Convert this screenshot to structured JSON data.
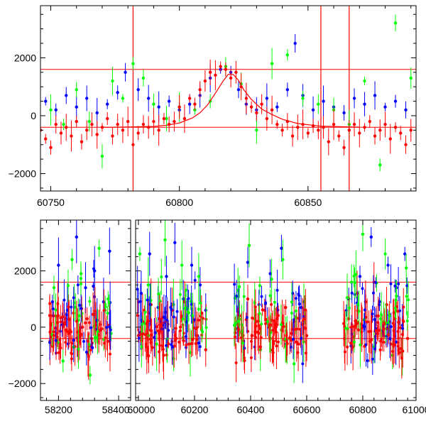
{
  "chart_data": [
    {
      "type": "scatter",
      "title": "",
      "xlabel": "",
      "ylabel": "",
      "xlim": [
        60746,
        60892
      ],
      "ylim": [
        -2600,
        3800
      ],
      "x_ticks": [
        60750,
        60800,
        60850
      ],
      "y_ticks": [
        -2000,
        0,
        2000
      ],
      "grid": false,
      "legend": "none",
      "hlines": [
        1600,
        -400
      ],
      "vlines": [
        60782,
        60855,
        60866
      ],
      "series": [
        {
          "color": "#0000ff",
          "x": [
            60748,
            60752,
            60756,
            60760,
            60764,
            60768,
            60772,
            60776,
            60779,
            60784,
            60788,
            60792,
            60796,
            60800,
            60804,
            60808,
            60812,
            60816,
            60820,
            60823,
            60826,
            60830,
            60834,
            60838,
            60842,
            60845,
            60848,
            60852,
            60856,
            60860,
            60864,
            60868,
            60872,
            60876,
            60880,
            60884,
            60888
          ],
          "y": [
            500,
            200,
            700,
            300,
            600,
            100,
            400,
            800,
            1500,
            900,
            600,
            300,
            500,
            200,
            400,
            700,
            1300,
            1600,
            1500,
            900,
            400,
            200,
            600,
            300,
            900,
            2500,
            700,
            200,
            500,
            300,
            100,
            600,
            400,
            700,
            300,
            500,
            200
          ]
        },
        {
          "color": "#00ff00",
          "x": [
            60750,
            60755,
            60760,
            60765,
            60770,
            60774,
            60778,
            60782,
            60786,
            60790,
            60795,
            60800,
            60806,
            60812,
            60818,
            60824,
            60830,
            60836,
            60842,
            60848,
            60854,
            60860,
            60866,
            60872,
            60878,
            60884,
            60890
          ],
          "y": [
            200,
            -300,
            900,
            -200,
            -1400,
            1200,
            600,
            1800,
            1300,
            400,
            -100,
            300,
            200,
            500,
            1700,
            1100,
            -500,
            1800,
            2100,
            600,
            400,
            200,
            -300,
            1200,
            -1700,
            3200,
            1300
          ]
        },
        {
          "color": "#ff0000",
          "x": [
            60746,
            60748,
            60750,
            60752,
            60754,
            60756,
            60758,
            60760,
            60762,
            60764,
            60766,
            60768,
            60770,
            60772,
            60774,
            60776,
            60778,
            60780,
            60782,
            60784,
            60786,
            60788,
            60790,
            60792,
            60794,
            60796,
            60798,
            60800,
            60802,
            60804,
            60806,
            60808,
            60810,
            60812,
            60814,
            60816,
            60818,
            60820,
            60822,
            60824,
            60826,
            60828,
            60830,
            60832,
            60834,
            60836,
            60838,
            60840,
            60842,
            60844,
            60846,
            60848,
            60850,
            60852,
            60854,
            60856,
            60858,
            60860,
            60862,
            60864,
            60866,
            60868,
            60870,
            60872,
            60874,
            60876,
            60878,
            60880,
            60882,
            60884,
            60886,
            60888,
            60890
          ],
          "y": [
            -500,
            -800,
            -1100,
            -300,
            -600,
            -400,
            -700,
            -200,
            -900,
            -500,
            -300,
            -650,
            -400,
            -100,
            -700,
            -300,
            -500,
            -200,
            -1000,
            -600,
            -300,
            -400,
            -200,
            -500,
            -100,
            -300,
            -200,
            300,
            -100,
            600,
            400,
            900,
            1200,
            1500,
            1400,
            1700,
            1600,
            1300,
            1500,
            1000,
            600,
            300,
            100,
            400,
            -100,
            200,
            -300,
            -500,
            -200,
            -700,
            -400,
            -300,
            -600,
            -350,
            -500,
            -400,
            -900,
            -300,
            -700,
            -1100,
            -500,
            -300,
            -600,
            -400,
            -200,
            -700,
            -500,
            -300,
            -800,
            -400,
            -600,
            -1000,
            -500
          ]
        }
      ],
      "model_curve": {
        "color": "#ff0000",
        "x": [
          60770,
          60780,
          60790,
          60795,
          60800,
          60805,
          60808,
          60811,
          60814,
          60817,
          60819,
          60821,
          60823,
          60825,
          60828,
          60832,
          60836,
          60840,
          60846,
          60855,
          60870
        ],
        "y": [
          -400,
          -390,
          -370,
          -330,
          -250,
          -80,
          100,
          380,
          780,
          1200,
          1430,
          1420,
          1220,
          900,
          560,
          230,
          40,
          -120,
          -270,
          -360,
          -395
        ]
      }
    },
    {
      "type": "scatter",
      "title": "",
      "xlabel": "",
      "ylabel": "",
      "xlim": [
        58140,
        60990
      ],
      "ylim": [
        -2600,
        3800
      ],
      "axis_break": [
        58440,
        59990
      ],
      "x_ticks": [
        58200,
        58400,
        60000,
        60200,
        60400,
        60600,
        60800,
        61000
      ],
      "y_ticks": [
        -2000,
        0,
        2000
      ],
      "grid": false,
      "legend": "none",
      "hlines": [
        1600,
        -400
      ],
      "groups": [
        [
          58170,
          58380
        ],
        [
          59995,
          60245
        ],
        [
          60340,
          60600
        ],
        [
          60730,
          60965
        ]
      ],
      "series": [
        {
          "color": "#0000ff",
          "x": [
            58180,
            58200,
            58230,
            58260,
            58290,
            58320,
            58350,
            58370,
            60010,
            60040,
            60070,
            60100,
            60130,
            60160,
            60190,
            60220,
            60240,
            60350,
            60390,
            60430,
            60470,
            60510,
            60550,
            60580,
            60750,
            60790,
            60830,
            60860,
            60890,
            60920,
            60950
          ],
          "y": [
            900,
            2200,
            600,
            3200,
            1400,
            2000,
            900,
            2700,
            1200,
            2600,
            700,
            1800,
            3000,
            1000,
            2200,
            1500,
            600,
            1100,
            2300,
            800,
            1900,
            2800,
            1200,
            700,
            1000,
            1800,
            3200,
            900,
            2200,
            1400,
            2600
          ]
        },
        {
          "color": "#00ff00",
          "x": [
            58185,
            58215,
            58245,
            58275,
            58305,
            58335,
            58365,
            60005,
            60035,
            60065,
            60095,
            60125,
            60155,
            60185,
            60215,
            60355,
            60395,
            60435,
            60475,
            60515,
            60555,
            60590,
            60760,
            60800,
            60840,
            60880,
            60920,
            60955
          ],
          "y": [
            1400,
            -1200,
            2400,
            1900,
            -1700,
            2800,
            1000,
            2600,
            1500,
            -600,
            3100,
            800,
            2200,
            -900,
            1800,
            1300,
            2900,
            -800,
            1700,
            2400,
            -1300,
            900,
            1600,
            3300,
            -700,
            2600,
            1100,
            2100
          ]
        },
        {
          "color": "#ff0000",
          "x": [
            58175,
            58190,
            58205,
            58220,
            58235,
            58250,
            58265,
            58280,
            58295,
            58310,
            58325,
            58340,
            58355,
            58370,
            60000,
            60015,
            60030,
            60045,
            60060,
            60075,
            60090,
            60105,
            60120,
            60135,
            60150,
            60165,
            60180,
            60195,
            60210,
            60225,
            60240,
            60345,
            60360,
            60375,
            60390,
            60405,
            60420,
            60435,
            60450,
            60465,
            60480,
            60495,
            60510,
            60525,
            60540,
            60555,
            60570,
            60585,
            60600,
            60735,
            60750,
            60765,
            60780,
            60795,
            60810,
            60825,
            60840,
            60855,
            60870,
            60885,
            60900,
            60915,
            60930,
            60945,
            60960
          ],
          "y": [
            -300,
            400,
            -600,
            100,
            -200,
            500,
            -800,
            0,
            300,
            -400,
            200,
            -100,
            600,
            -500,
            -300,
            200,
            -700,
            800,
            -200,
            300,
            -1000,
            100,
            600,
            -400,
            0,
            900,
            -600,
            200,
            -300,
            500,
            -800,
            -200,
            400,
            -500,
            1000,
            -300,
            200,
            -700,
            600,
            0,
            -900,
            300,
            -100,
            700,
            -400,
            200,
            -600,
            100,
            -300,
            -400,
            300,
            -700,
            1200,
            100,
            900,
            -500,
            1600,
            400,
            -200,
            800,
            -600,
            300,
            -900,
            200,
            -400
          ]
        }
      ]
    }
  ]
}
